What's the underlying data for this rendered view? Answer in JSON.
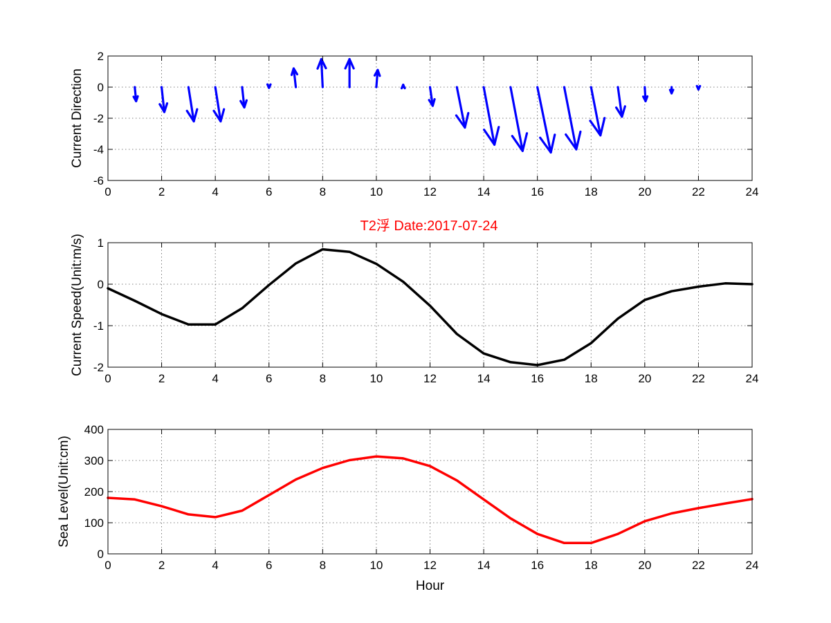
{
  "figure": {
    "title": "T2浮    Date:2017-07-24",
    "title_color": "#ff0000"
  },
  "chart_data": [
    {
      "type": "quiver",
      "ylabel": "Current Direction",
      "xlabel": "",
      "xlim": [
        0,
        24
      ],
      "ylim": [
        -6,
        2
      ],
      "xticks": [
        0,
        2,
        4,
        6,
        8,
        10,
        12,
        14,
        16,
        18,
        20,
        22,
        24
      ],
      "yticks": [
        -6,
        -4,
        -2,
        0,
        2
      ],
      "color": "#0000ff",
      "grid": true,
      "arrows": [
        {
          "x": 1,
          "u": 0.05,
          "v": -0.9
        },
        {
          "x": 2,
          "u": 0.1,
          "v": -1.6
        },
        {
          "x": 3,
          "u": 0.2,
          "v": -2.2
        },
        {
          "x": 4,
          "u": 0.2,
          "v": -2.2
        },
        {
          "x": 5,
          "u": 0.08,
          "v": -1.3
        },
        {
          "x": 6,
          "u": 0.0,
          "v": -0.05
        },
        {
          "x": 7,
          "u": -0.08,
          "v": 1.2
        },
        {
          "x": 8,
          "u": -0.05,
          "v": 1.8
        },
        {
          "x": 9,
          "u": 0.0,
          "v": 1.8
        },
        {
          "x": 10,
          "u": 0.05,
          "v": 1.1
        },
        {
          "x": 11,
          "u": 0.0,
          "v": 0.15
        },
        {
          "x": 12,
          "u": 0.1,
          "v": -1.2
        },
        {
          "x": 13,
          "u": 0.3,
          "v": -2.6
        },
        {
          "x": 14,
          "u": 0.4,
          "v": -3.7
        },
        {
          "x": 15,
          "u": 0.45,
          "v": -4.1
        },
        {
          "x": 16,
          "u": 0.5,
          "v": -4.2
        },
        {
          "x": 17,
          "u": 0.45,
          "v": -4.0
        },
        {
          "x": 18,
          "u": 0.35,
          "v": -3.1
        },
        {
          "x": 19,
          "u": 0.15,
          "v": -1.9
        },
        {
          "x": 20,
          "u": 0.03,
          "v": -0.9
        },
        {
          "x": 21,
          "u": 0.0,
          "v": -0.4
        },
        {
          "x": 22,
          "u": 0.0,
          "v": -0.15
        }
      ]
    },
    {
      "type": "line",
      "ylabel": "Current Speed(Unit:m/s)",
      "xlabel": "",
      "xlim": [
        0,
        24
      ],
      "ylim": [
        -2,
        1
      ],
      "xticks": [
        0,
        2,
        4,
        6,
        8,
        10,
        12,
        14,
        16,
        18,
        20,
        22,
        24
      ],
      "yticks": [
        -2,
        -1,
        0,
        1
      ],
      "grid": true,
      "series": [
        {
          "color": "#000000",
          "x": [
            0,
            1,
            2,
            3,
            4,
            5,
            6,
            7,
            8,
            9,
            10,
            11,
            12,
            13,
            14,
            15,
            16,
            17,
            18,
            19,
            20,
            21,
            22,
            23,
            24
          ],
          "y": [
            -0.1,
            -0.4,
            -0.72,
            -0.97,
            -0.97,
            -0.58,
            -0.02,
            0.5,
            0.84,
            0.78,
            0.49,
            0.06,
            -0.52,
            -1.2,
            -1.67,
            -1.88,
            -1.95,
            -1.82,
            -1.42,
            -0.83,
            -0.38,
            -0.17,
            -0.06,
            0.02,
            0.0
          ]
        }
      ]
    },
    {
      "type": "line",
      "ylabel": "Sea Level(Unit:cm)",
      "xlabel": "Hour",
      "xlim": [
        0,
        24
      ],
      "ylim": [
        0,
        400
      ],
      "xticks": [
        0,
        2,
        4,
        6,
        8,
        10,
        12,
        14,
        16,
        18,
        20,
        22,
        24
      ],
      "yticks": [
        0,
        100,
        200,
        300,
        400
      ],
      "grid": true,
      "series": [
        {
          "color": "#ff0000",
          "x": [
            0,
            1,
            2,
            3,
            4,
            5,
            6,
            7,
            8,
            9,
            10,
            11,
            12,
            13,
            14,
            15,
            16,
            17,
            18,
            19,
            20,
            21,
            22,
            23,
            24
          ],
          "y": [
            180,
            175,
            153,
            127,
            118,
            139,
            189,
            239,
            276,
            301,
            313,
            307,
            282,
            236,
            175,
            114,
            64,
            35,
            35,
            64,
            105,
            130,
            147,
            162,
            176
          ]
        }
      ]
    }
  ]
}
